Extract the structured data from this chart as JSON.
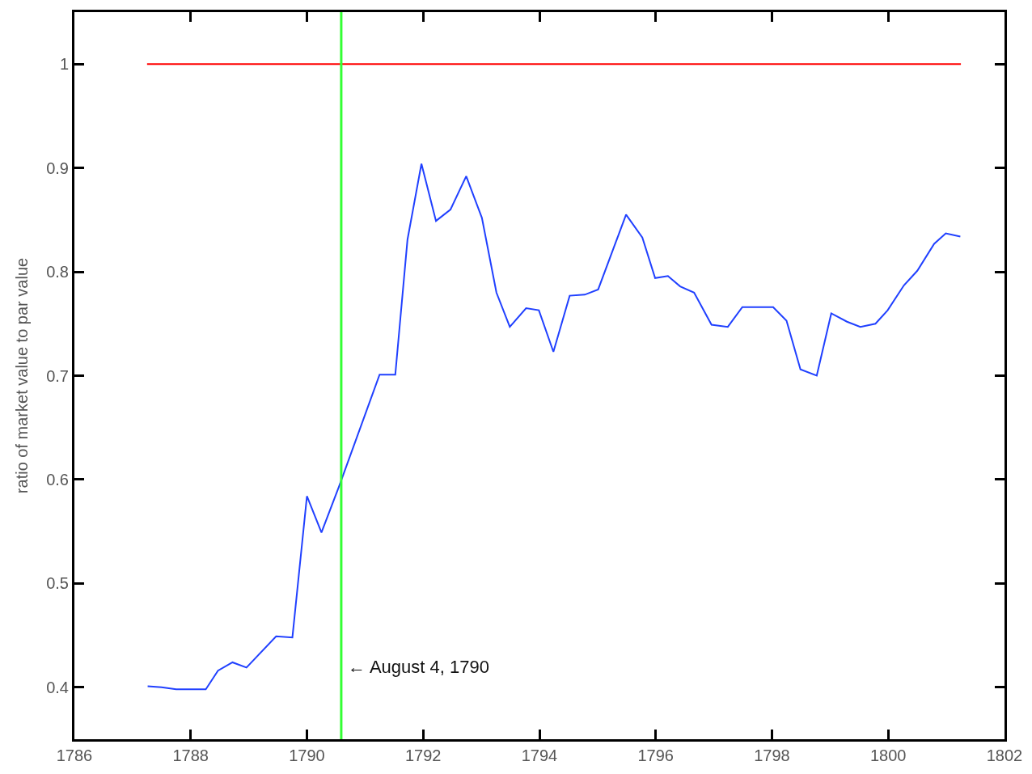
{
  "chart_data": {
    "type": "line",
    "ylabel": "ratio of market value to par value",
    "xlim": [
      1786,
      1802
    ],
    "xticks": [
      1786,
      1788,
      1790,
      1792,
      1794,
      1796,
      1798,
      1800,
      1802
    ],
    "ylim": [
      0.35,
      1.05
    ],
    "yticks": [
      {
        "value": 0.4,
        "label": "0.4"
      },
      {
        "value": 0.5,
        "label": "0.5"
      },
      {
        "value": 0.6,
        "label": "0.6"
      },
      {
        "value": 0.7,
        "label": "0.7"
      },
      {
        "value": 0.8,
        "label": "0.8"
      },
      {
        "value": 0.9,
        "label": "0.9"
      },
      {
        "value": 1,
        "label": "1"
      }
    ],
    "series": [
      {
        "color": "#2040ff",
        "x": [
          1787.26,
          1787.5,
          1787.75,
          1788.26,
          1788.47,
          1788.72,
          1788.96,
          1789.47,
          1789.75,
          1790.0,
          1790.25,
          1790.55,
          1791.25,
          1791.52,
          1791.73,
          1791.97,
          1792.22,
          1792.47,
          1792.74,
          1793.01,
          1793.26,
          1793.49,
          1793.77,
          1793.99,
          1794.24,
          1794.52,
          1794.78,
          1795.01,
          1795.49,
          1795.77,
          1795.99,
          1796.21,
          1796.42,
          1796.66,
          1796.96,
          1797.24,
          1797.49,
          1798.02,
          1798.25,
          1798.49,
          1798.77,
          1799.02,
          1799.29,
          1799.52,
          1799.78,
          1799.99,
          1800.27,
          1800.5,
          1800.79,
          1800.99,
          1801.24
        ],
        "values": [
          0.401,
          0.4,
          0.398,
          0.398,
          0.416,
          0.424,
          0.419,
          0.449,
          0.448,
          0.584,
          0.549,
          0.593,
          0.701,
          0.701,
          0.831,
          0.904,
          0.849,
          0.86,
          0.892,
          0.852,
          0.78,
          0.747,
          0.765,
          0.763,
          0.723,
          0.777,
          0.778,
          0.783,
          0.855,
          0.833,
          0.794,
          0.796,
          0.786,
          0.78,
          0.749,
          0.747,
          0.766,
          0.766,
          0.753,
          0.706,
          0.7,
          0.76,
          0.752,
          0.747,
          0.75,
          0.763,
          0.787,
          0.801,
          0.827,
          0.837,
          0.834
        ]
      },
      {
        "color": "#ff0000",
        "x": [
          1787.25,
          1801.25
        ],
        "values": [
          1,
          1
        ]
      }
    ],
    "ref_lines": [
      {
        "axis": "x",
        "value": 1790.59,
        "color": "#33ff33"
      }
    ],
    "annotations": [
      {
        "text": "← August 4, 1790",
        "x": 1790.59,
        "y": 0.42
      }
    ]
  }
}
